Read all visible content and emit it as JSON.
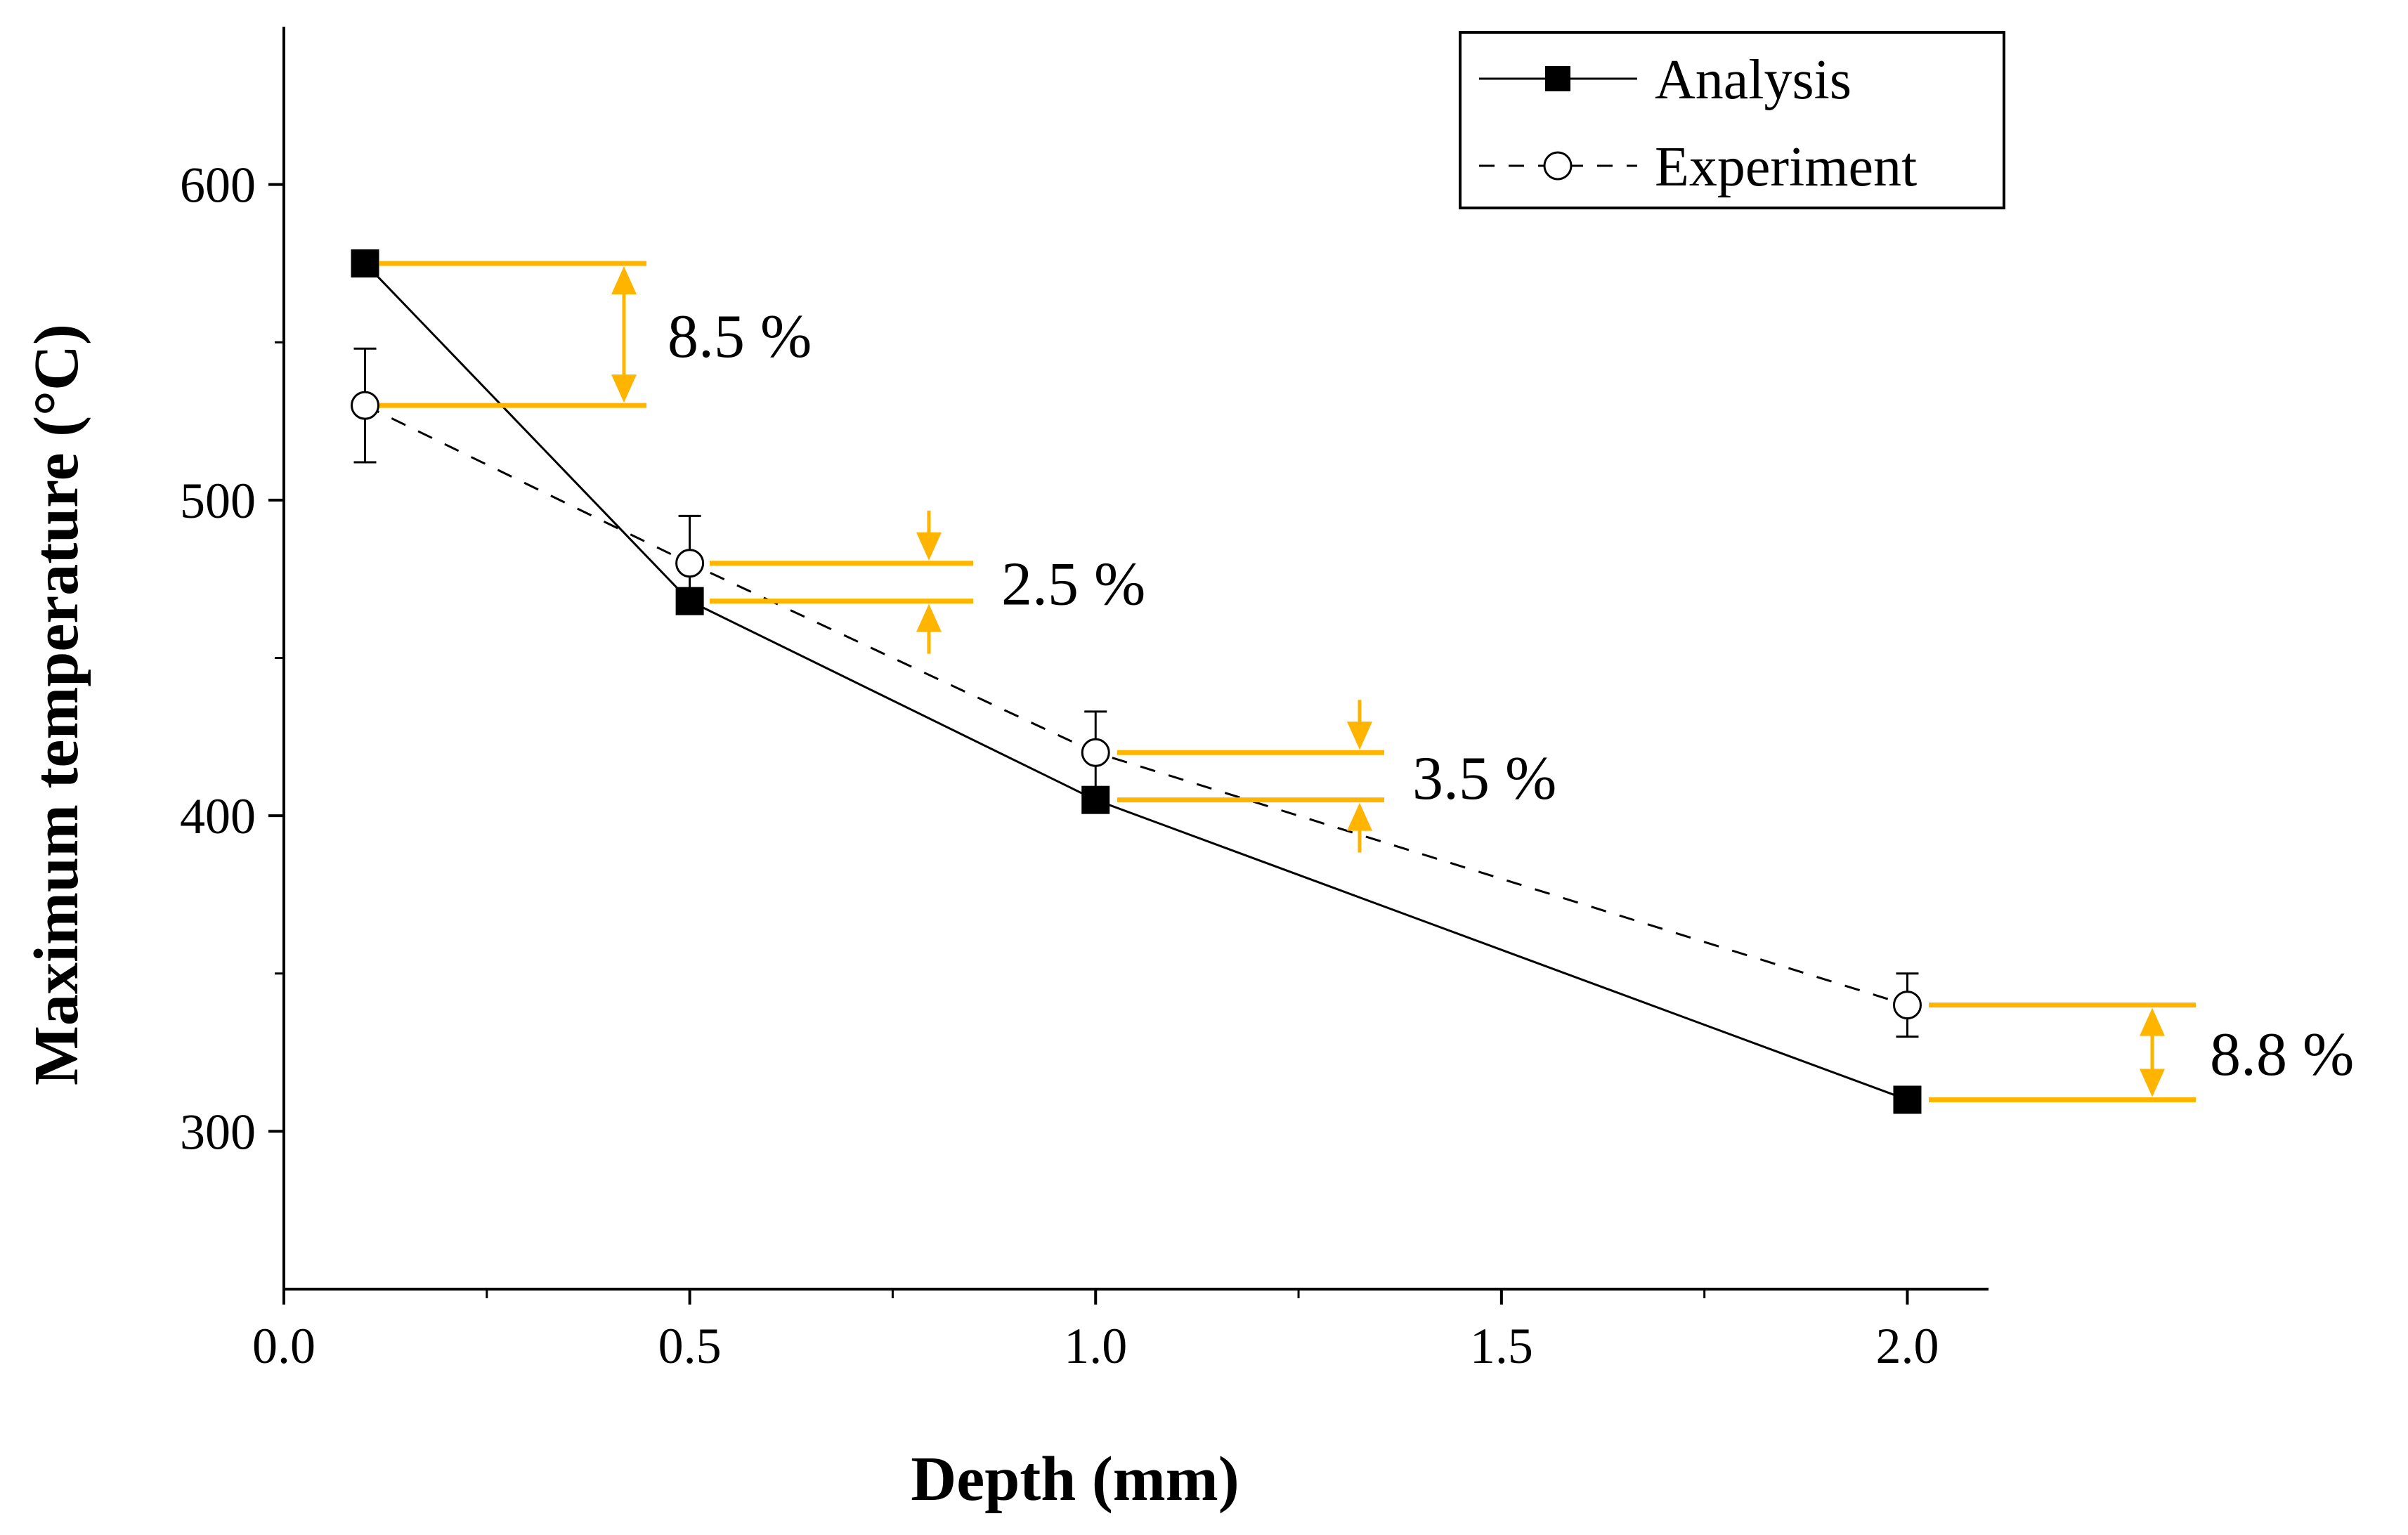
{
  "chart_data": {
    "type": "line",
    "xlabel": "Depth (mm)",
    "ylabel": "Maximum temperature (°C)",
    "xlim": [
      0.0,
      2.1
    ],
    "ylim": [
      250,
      650
    ],
    "x_ticks": [
      0.0,
      0.5,
      1.0,
      1.5,
      2.0
    ],
    "x_tick_labels": [
      "0.0",
      "0.5",
      "1.0",
      "1.5",
      "2.0"
    ],
    "x_minor_ticks": [
      0.25,
      0.75,
      1.25,
      1.75
    ],
    "y_ticks": [
      300,
      400,
      500,
      600
    ],
    "y_tick_labels": [
      "300",
      "400",
      "500",
      "600"
    ],
    "y_minor_ticks": [
      350,
      450,
      550
    ],
    "grid": false,
    "legend_position": "top-right",
    "series": [
      {
        "name": "Analysis",
        "marker": "filled-square",
        "line": "solid",
        "x": [
          0.1,
          0.5,
          1.0,
          2.0
        ],
        "y": [
          575,
          468,
          405,
          310
        ]
      },
      {
        "name": "Experiment",
        "marker": "open-circle",
        "line": "dashed",
        "x": [
          0.1,
          0.5,
          1.0,
          2.0
        ],
        "y": [
          530,
          480,
          420,
          340
        ],
        "error": [
          18,
          15,
          13,
          10
        ]
      }
    ],
    "annotations": [
      {
        "text": "8.5 %",
        "x": 0.1,
        "upper": 575,
        "lower": 530,
        "arrow": "inner"
      },
      {
        "text": "2.5 %",
        "x": 0.5,
        "upper": 480,
        "lower": 468,
        "arrow": "outer"
      },
      {
        "text": "3.5 %",
        "x": 1.0,
        "upper": 420,
        "lower": 405,
        "arrow": "outer"
      },
      {
        "text": "8.8 %",
        "x": 2.0,
        "upper": 340,
        "lower": 310,
        "arrow": "inner"
      }
    ],
    "colors": {
      "annotation": "#ffb400",
      "line": "#000000"
    }
  }
}
